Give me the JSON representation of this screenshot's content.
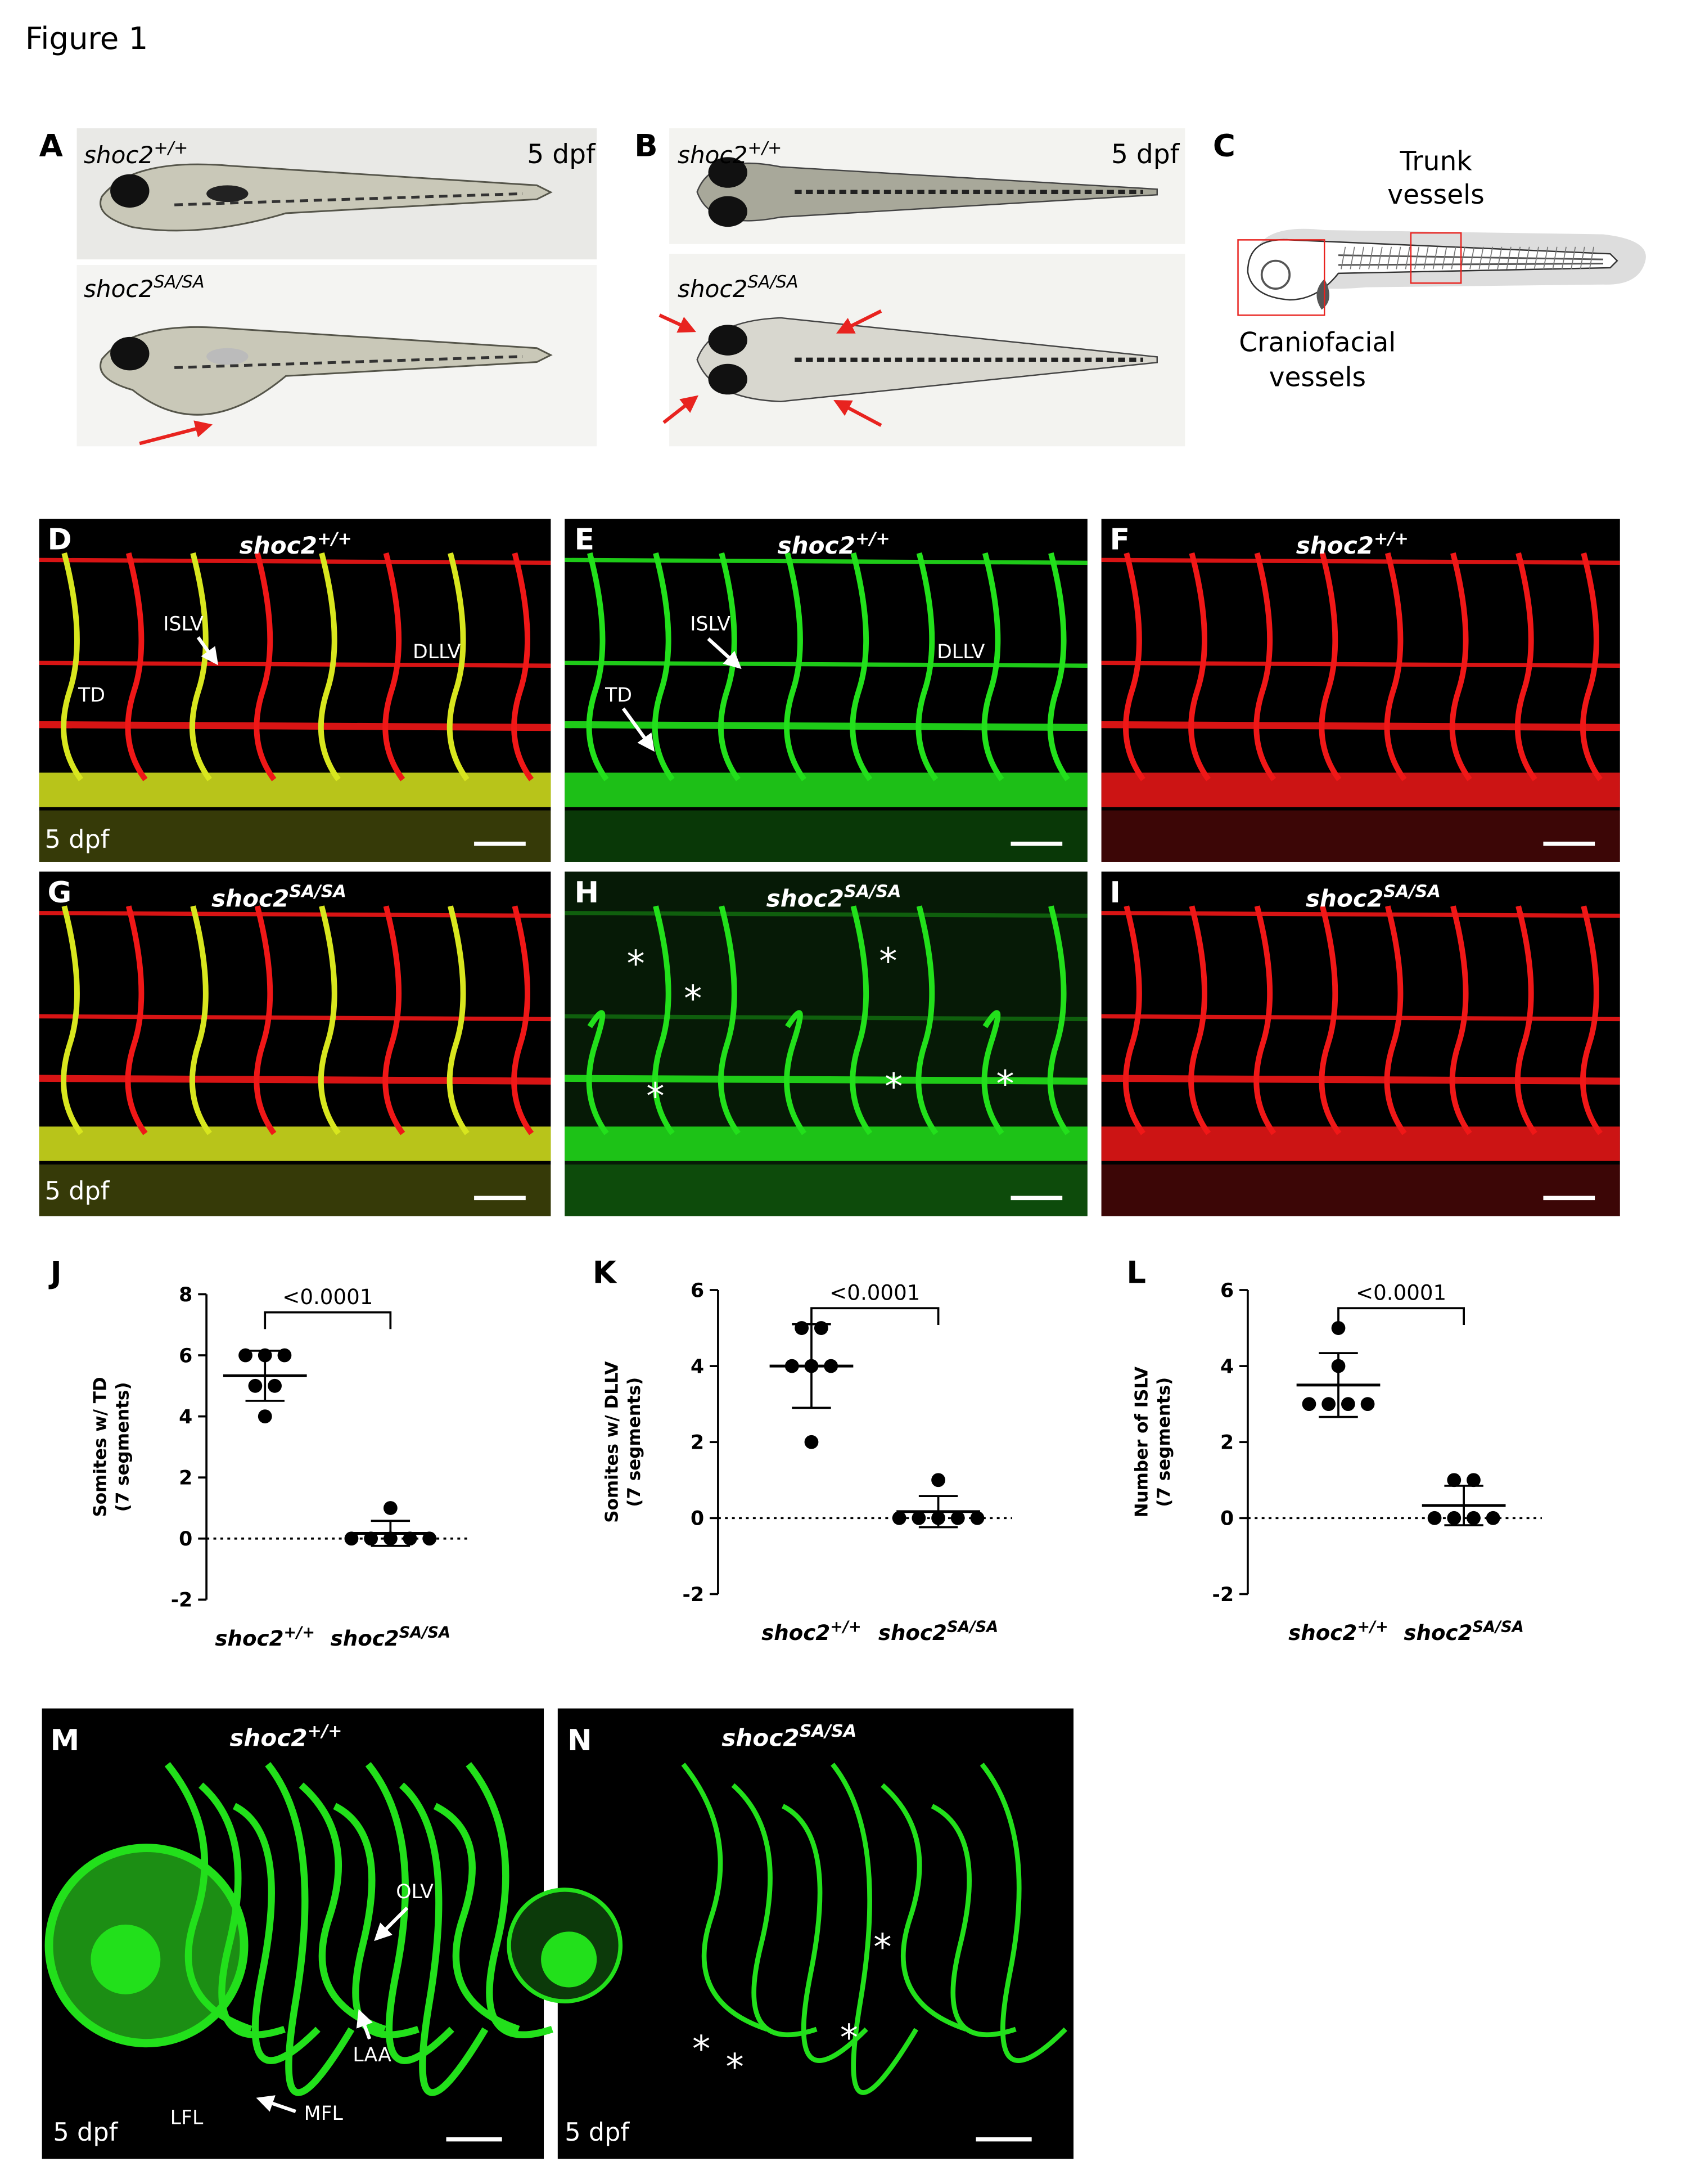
{
  "figure_title": "Figure 1",
  "panels": {
    "A": {
      "letter": "A",
      "top_label": {
        "gene": "shoc2",
        "allele": "+/+"
      },
      "stage": "5 dpf",
      "bottom_label": {
        "gene": "shoc2",
        "allele": "SA/SA"
      }
    },
    "B": {
      "letter": "B",
      "top_label": {
        "gene": "shoc2",
        "allele": "+/+"
      },
      "stage": "5 dpf",
      "bottom_label": {
        "gene": "shoc2",
        "allele": "SA/SA"
      }
    },
    "C": {
      "letter": "C",
      "trunk": [
        "Trunk",
        "vessels"
      ],
      "cranial": [
        "Craniofacial",
        "vessels"
      ]
    },
    "D": {
      "letter": "D",
      "genotype": {
        "gene": "shoc2",
        "allele": "+/+"
      },
      "ISLV": "ISLV",
      "DLLV": "DLLV",
      "TD": "TD",
      "stage": "5 dpf"
    },
    "E": {
      "letter": "E",
      "genotype": {
        "gene": "shoc2",
        "allele": "+/+"
      },
      "ISLV": "ISLV",
      "DLLV": "DLLV",
      "TD": "TD"
    },
    "F": {
      "letter": "F",
      "genotype": {
        "gene": "shoc2",
        "allele": "+/+"
      }
    },
    "G": {
      "letter": "G",
      "genotype": {
        "gene": "shoc2",
        "allele": "SA/SA"
      },
      "stage": "5 dpf"
    },
    "H": {
      "letter": "H",
      "genotype": {
        "gene": "shoc2",
        "allele": "SA/SA"
      },
      "marker": "*"
    },
    "I": {
      "letter": "I",
      "genotype": {
        "gene": "shoc2",
        "allele": "SA/SA"
      }
    },
    "M": {
      "letter": "M",
      "genotype": {
        "gene": "shoc2",
        "allele": "+/+"
      },
      "OLV": "OLV",
      "LAA": "LAA",
      "LFL": "LFL",
      "MFL": "MFL",
      "stage": "5 dpf"
    },
    "N": {
      "letter": "N",
      "genotype": {
        "gene": "shoc2",
        "allele": "SA/SA"
      },
      "stage": "5 dpf",
      "marker": "*"
    }
  },
  "chart_data": [
    {
      "type": "scatter",
      "panel_label": "J",
      "y_label": [
        "Somites w/ TD",
        "(7 segments)"
      ],
      "categories": [
        "shoc2",
        "shoc2"
      ],
      "category_superscripts": [
        "+/+",
        "SA/SA"
      ],
      "groups": [
        {
          "values": [
            6,
            6,
            6,
            5,
            5,
            4
          ],
          "mean": 5.33,
          "sd": 0.82
        },
        {
          "values": [
            1,
            0,
            0,
            0,
            0,
            0
          ],
          "mean": 0.17,
          "sd": 0.41
        }
      ],
      "color": "#000000",
      "annotation": "<0.0001",
      "ylim": [
        -2,
        8
      ],
      "yticks": [
        -2,
        0,
        2,
        4,
        6,
        8
      ]
    },
    {
      "type": "scatter",
      "panel_label": "K",
      "y_label": [
        "Somites w/ DLLV",
        "(7 segments)"
      ],
      "categories": [
        "shoc2",
        "shoc2"
      ],
      "category_superscripts": [
        "+/+",
        "SA/SA"
      ],
      "groups": [
        {
          "values": [
            5,
            5,
            4,
            4,
            4,
            2
          ],
          "mean": 4.0,
          "sd": 1.1
        },
        {
          "values": [
            1,
            0,
            0,
            0,
            0,
            0
          ],
          "mean": 0.17,
          "sd": 0.41
        }
      ],
      "color": "#000000",
      "annotation": "<0.0001",
      "ylim": [
        -2,
        6
      ],
      "yticks": [
        -2,
        0,
        2,
        4,
        6
      ]
    },
    {
      "type": "scatter",
      "panel_label": "L",
      "y_label": [
        "Number of ISLV",
        "(7 segments)"
      ],
      "categories": [
        "shoc2",
        "shoc2"
      ],
      "category_superscripts": [
        "+/+",
        "SA/SA"
      ],
      "groups": [
        {
          "values": [
            5,
            4,
            3,
            3,
            3,
            3
          ],
          "mean": 3.5,
          "sd": 0.84
        },
        {
          "values": [
            1,
            1,
            0,
            0,
            0,
            0
          ],
          "mean": 0.33,
          "sd": 0.52
        }
      ],
      "color": "#000000",
      "annotation": "<0.0001",
      "ylim": [
        -2,
        6
      ],
      "yticks": [
        -2,
        0,
        2,
        4,
        6
      ]
    }
  ]
}
